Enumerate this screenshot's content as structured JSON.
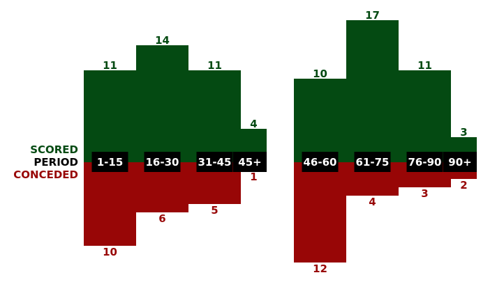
{
  "chart_data": {
    "type": "bar",
    "legend": {
      "scored": "SCORED",
      "period": "PERIOD",
      "conceded": "CONCEDED"
    },
    "colors": {
      "scored": "#044a12",
      "conceded": "#980606",
      "label_bg": "#000000",
      "label_text": "#ffffff"
    },
    "halves": [
      {
        "categories": [
          "1-15",
          "16-30",
          "31-45",
          "45+"
        ],
        "scored": [
          11,
          14,
          11,
          4
        ],
        "conceded": [
          10,
          6,
          5,
          1
        ]
      },
      {
        "categories": [
          "46-60",
          "61-75",
          "76-90",
          "90+"
        ],
        "scored": [
          10,
          17,
          11,
          3
        ],
        "conceded": [
          12,
          4,
          3,
          2
        ]
      }
    ]
  }
}
